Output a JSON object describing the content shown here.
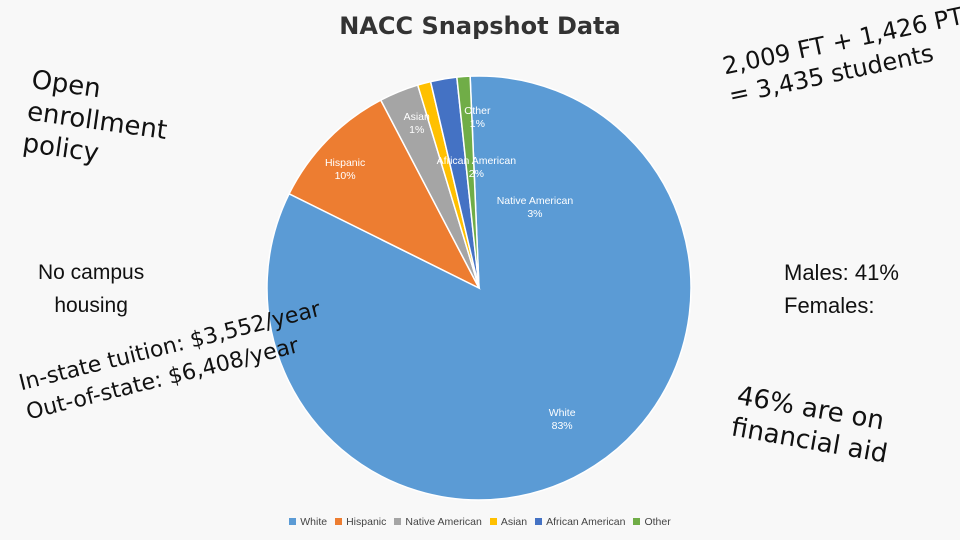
{
  "slide": {
    "title": "NACC Snapshot Data"
  },
  "callouts": {
    "open_enrollment": [
      "Open",
      "enrollment",
      "policy"
    ],
    "students": [
      "2,009 FT + 1,426 PT",
      "= 3,435 students"
    ],
    "housing": [
      "No campus",
      "housing"
    ],
    "gender": [
      "Males: 41%",
      "Females:"
    ],
    "tuition": [
      "In-state tuition: $3,552/year",
      "Out-of-state: $6,408/year"
    ],
    "aid": [
      "46% are on",
      "financial aid"
    ]
  },
  "chart_data": {
    "type": "pie",
    "title": "NACC Snapshot Data",
    "slices": [
      {
        "name": "White",
        "label": "White",
        "value": 83,
        "color": "#5b9bd5"
      },
      {
        "name": "Hispanic",
        "label": "Hispanic",
        "value": 10,
        "color": "#ed7d31"
      },
      {
        "name": "Native American",
        "label": "Native American",
        "value": 3,
        "color": "#a5a5a5"
      },
      {
        "name": "Asian",
        "label": "Asian",
        "value": 1,
        "color": "#ffc000"
      },
      {
        "name": "African American",
        "label": "African American",
        "value": 2,
        "color": "#4472c4"
      },
      {
        "name": "Other",
        "label": "Other",
        "value": 1,
        "color": "#70ad47"
      }
    ],
    "legend_position": "bottom"
  }
}
